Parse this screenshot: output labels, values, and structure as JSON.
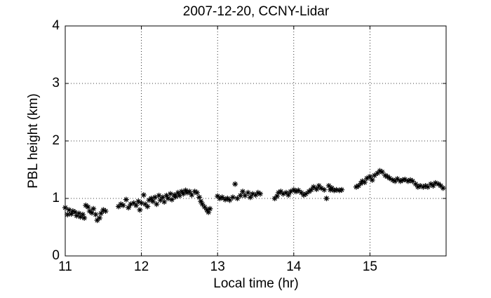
{
  "chart_data": {
    "type": "scatter",
    "title": "2007-12-20, CCNY-Lidar",
    "x_label": "Local time (hr)",
    "y_label": "PBL height (km)",
    "color": "#000000",
    "grid": true,
    "xlim": [
      11,
      16
    ],
    "xticks": [
      11,
      12,
      13,
      14,
      15
    ],
    "ylim": [
      0,
      4
    ],
    "yticks": [
      0,
      1,
      2,
      3,
      4
    ],
    "x": [
      11.0,
      11.03,
      11.05,
      11.08,
      11.1,
      11.13,
      11.15,
      11.18,
      11.2,
      11.23,
      11.25,
      11.27,
      11.3,
      11.32,
      11.35,
      11.37,
      11.4,
      11.42,
      11.45,
      11.47,
      11.5,
      11.53,
      11.7,
      11.73,
      11.76,
      11.8,
      11.83,
      11.86,
      11.9,
      11.93,
      11.96,
      11.98,
      12.0,
      12.03,
      12.05,
      12.08,
      12.1,
      12.13,
      12.15,
      12.18,
      12.2,
      12.23,
      12.25,
      12.28,
      12.3,
      12.33,
      12.35,
      12.38,
      12.4,
      12.43,
      12.45,
      12.48,
      12.5,
      12.53,
      12.55,
      12.58,
      12.6,
      12.63,
      12.66,
      12.7,
      12.73,
      12.76,
      12.78,
      12.8,
      12.83,
      12.86,
      12.88,
      12.9,
      13.0,
      13.03,
      13.06,
      13.1,
      13.13,
      13.16,
      13.2,
      13.23,
      13.26,
      13.3,
      13.33,
      13.36,
      13.4,
      13.43,
      13.46,
      13.5,
      13.53,
      13.56,
      13.75,
      13.78,
      13.8,
      13.83,
      13.86,
      13.9,
      13.93,
      13.96,
      14.0,
      14.03,
      14.06,
      14.1,
      14.13,
      14.16,
      14.2,
      14.23,
      14.26,
      14.3,
      14.33,
      14.36,
      14.4,
      14.43,
      14.46,
      14.48,
      14.5,
      14.53,
      14.56,
      14.6,
      14.63,
      14.82,
      14.85,
      14.88,
      14.9,
      14.93,
      14.96,
      15.0,
      15.03,
      15.06,
      15.1,
      15.13,
      15.16,
      15.2,
      15.23,
      15.26,
      15.3,
      15.33,
      15.36,
      15.4,
      15.43,
      15.46,
      15.5,
      15.53,
      15.56,
      15.6,
      15.63,
      15.66,
      15.7,
      15.73,
      15.76,
      15.8,
      15.83,
      15.86,
      15.9,
      15.93,
      15.96
    ],
    "y": [
      0.84,
      0.72,
      0.8,
      0.73,
      0.78,
      0.76,
      0.7,
      0.74,
      0.68,
      0.72,
      0.66,
      0.88,
      0.85,
      0.78,
      0.75,
      0.82,
      0.72,
      0.62,
      0.66,
      0.74,
      0.8,
      0.78,
      0.86,
      0.9,
      0.88,
      0.98,
      0.84,
      0.9,
      0.92,
      0.88,
      0.95,
      0.8,
      0.92,
      1.06,
      0.9,
      0.86,
      0.97,
      1.0,
      0.95,
      1.02,
      0.9,
      1.05,
      0.97,
      1.02,
      0.94,
      1.05,
      1.0,
      1.08,
      0.98,
      1.06,
      1.03,
      1.1,
      1.05,
      1.12,
      1.08,
      1.14,
      1.1,
      1.12,
      1.06,
      1.12,
      1.1,
      1.02,
      0.95,
      0.9,
      0.85,
      0.8,
      0.76,
      0.82,
      1.04,
      1.0,
      1.02,
      0.98,
      1.0,
      0.97,
      1.02,
      1.25,
      1.0,
      1.05,
      1.12,
      1.05,
      1.1,
      1.02,
      1.08,
      1.06,
      1.1,
      1.08,
      1.0,
      1.04,
      1.1,
      1.12,
      1.08,
      1.1,
      1.06,
      1.12,
      1.15,
      1.12,
      1.14,
      1.1,
      1.06,
      1.08,
      1.12,
      1.15,
      1.2,
      1.16,
      1.22,
      1.18,
      1.15,
      1.0,
      1.22,
      1.15,
      1.18,
      1.14,
      1.15,
      1.14,
      1.15,
      1.2,
      1.22,
      1.26,
      1.3,
      1.28,
      1.35,
      1.38,
      1.32,
      1.4,
      1.44,
      1.48,
      1.46,
      1.4,
      1.38,
      1.35,
      1.32,
      1.3,
      1.34,
      1.3,
      1.32,
      1.33,
      1.3,
      1.32,
      1.3,
      1.25,
      1.2,
      1.22,
      1.2,
      1.22,
      1.2,
      1.25,
      1.22,
      1.27,
      1.25,
      1.22,
      1.18
    ]
  }
}
